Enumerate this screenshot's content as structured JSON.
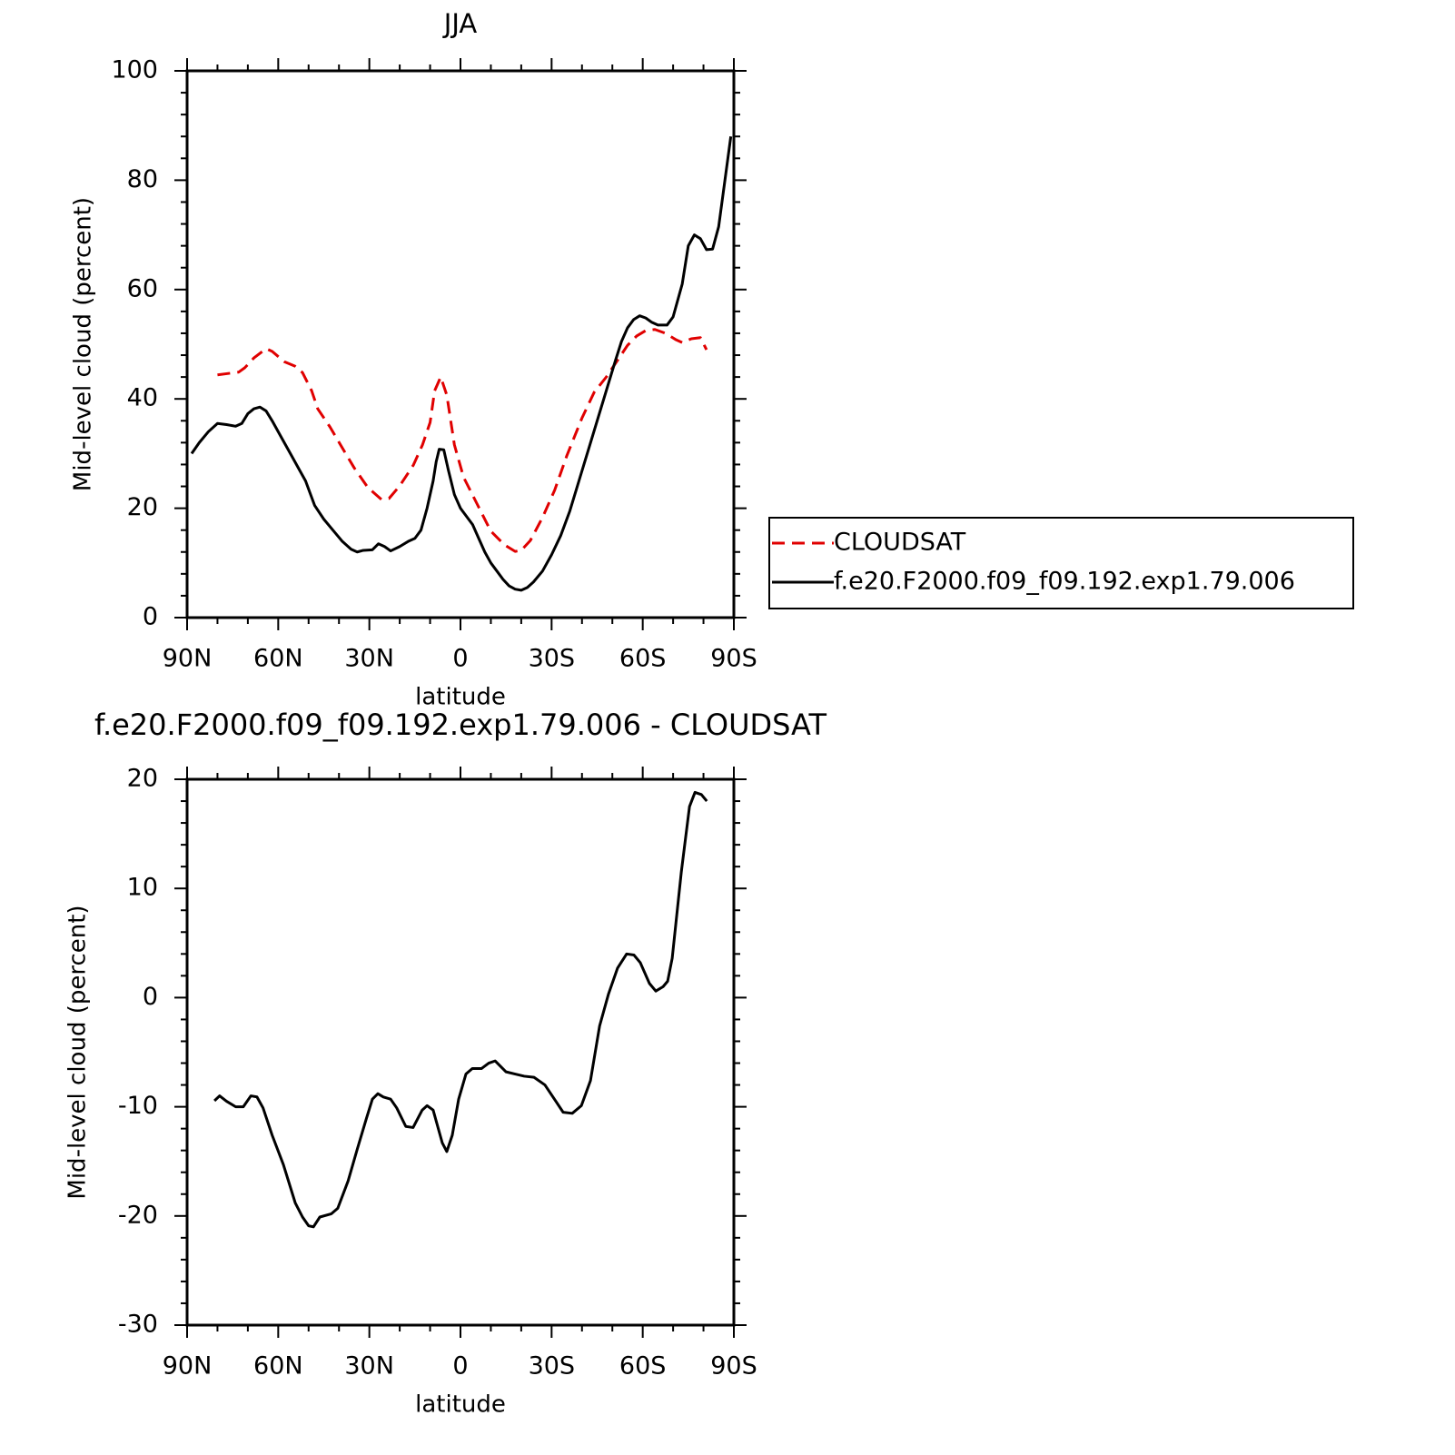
{
  "chart_data": [
    {
      "type": "line",
      "title": "JJA",
      "xlabel": "latitude",
      "ylabel": "Mid-level cloud (percent)",
      "xlim": [
        90,
        -90
      ],
      "ylim": [
        0,
        100
      ],
      "xticks": [
        {
          "value": 90,
          "label": "90N"
        },
        {
          "value": 60,
          "label": "60N"
        },
        {
          "value": 30,
          "label": "30N"
        },
        0,
        {
          "value": -30,
          "label": "30S"
        },
        {
          "value": -60,
          "label": "60S"
        },
        {
          "value": -90,
          "label": "90S"
        }
      ],
      "yticks": [
        0,
        20,
        40,
        60,
        80,
        100
      ],
      "xminorticks": [
        80,
        70,
        50,
        40,
        20,
        10,
        -10,
        -20,
        -40,
        -50,
        -70,
        -80
      ],
      "yminorticks": [
        4,
        8,
        12,
        16,
        24,
        28,
        32,
        36,
        44,
        48,
        52,
        56,
        64,
        68,
        72,
        76,
        84,
        88,
        92,
        96
      ],
      "legend": "right",
      "series": [
        {
          "name": "CLOUDSAT",
          "color": "#e00000",
          "linestyle": "dashed",
          "x": [
            80,
            73,
            71,
            68,
            64,
            62,
            58,
            54.5,
            52,
            49,
            47,
            43,
            39.5,
            35,
            30.5,
            26,
            23.5,
            20,
            15.5,
            12.5,
            10,
            8.5,
            6.5,
            4.5,
            2,
            -1,
            -4,
            -7,
            -10,
            -14.5,
            -18,
            -20,
            -23,
            -27,
            -31,
            -35,
            -40,
            -44,
            -48,
            -52,
            -55,
            -58,
            -61,
            -64,
            -67.5,
            -71,
            -73,
            -76,
            -79,
            -81
          ],
          "values": [
            44.4,
            44.9,
            45.7,
            47.5,
            49.2,
            48.7,
            46.8,
            46,
            44.8,
            41.5,
            38.2,
            34.9,
            31.6,
            27.4,
            23.8,
            21.6,
            21.8,
            24.1,
            27.9,
            31.6,
            35.7,
            41.5,
            44,
            40.7,
            31.6,
            25.7,
            22.4,
            19.1,
            15.8,
            13.3,
            12.1,
            12.3,
            14.1,
            18.3,
            23.3,
            29.6,
            36.5,
            41.2,
            44,
            47.3,
            49.8,
            51.5,
            52.5,
            52.7,
            52,
            50.8,
            50.3,
            51,
            51.2,
            49
          ]
        },
        {
          "name": "f.e20.F2000.f09_f09.192.exp1.79.006",
          "color": "#000000",
          "linestyle": "solid",
          "x": [
            88.5,
            86,
            83,
            80,
            77,
            74,
            72,
            70,
            68,
            66,
            64,
            62,
            59,
            56,
            53,
            51,
            48,
            45,
            42,
            39,
            36,
            34,
            32,
            29,
            27,
            25,
            23,
            20,
            17,
            15,
            13,
            11,
            9,
            8,
            7,
            5.5,
            4,
            2,
            0,
            -2,
            -4,
            -6,
            -8,
            -10,
            -12,
            -14,
            -16,
            -18,
            -20,
            -22,
            -24,
            -27,
            -30,
            -33,
            -36,
            -39,
            -42,
            -45,
            -48,
            -51,
            -53,
            -55,
            -57,
            -59,
            -61,
            -63,
            -65,
            -68,
            -70,
            -73,
            -75,
            -77,
            -79,
            -81,
            -83,
            -85,
            -89
          ],
          "values": [
            30,
            32,
            34,
            35.5,
            35.3,
            35,
            35.5,
            37.3,
            38.2,
            38.5,
            37.8,
            36,
            33,
            30,
            27,
            25,
            20.5,
            18,
            16,
            14,
            12.5,
            12,
            12.3,
            12.4,
            13.5,
            13,
            12.2,
            13,
            14,
            14.5,
            16,
            20,
            25,
            28.5,
            30.8,
            30.7,
            27,
            22.5,
            20,
            18.5,
            17,
            14.5,
            12,
            10,
            8.5,
            7,
            5.8,
            5.2,
            5,
            5.5,
            6.5,
            8.5,
            11.5,
            15,
            19.5,
            25,
            30.5,
            36,
            41.5,
            47,
            50.5,
            53,
            54.5,
            55.2,
            54.8,
            54,
            53.5,
            53.5,
            55,
            61,
            68,
            70,
            69.3,
            67.3,
            67.4,
            71.5,
            88
          ]
        }
      ]
    },
    {
      "type": "line",
      "title": "f.e20.F2000.f09_f09.192.exp1.79.006 - CLOUDSAT",
      "xlabel": "latitude",
      "ylabel": "Mid-level cloud (percent)",
      "xlim": [
        90,
        -90
      ],
      "ylim": [
        -30,
        20
      ],
      "xticks": [
        {
          "value": 90,
          "label": "90N"
        },
        {
          "value": 60,
          "label": "60N"
        },
        {
          "value": 30,
          "label": "30N"
        },
        0,
        {
          "value": -30,
          "label": "30S"
        },
        {
          "value": -60,
          "label": "60S"
        },
        {
          "value": -90,
          "label": "90S"
        }
      ],
      "yticks": [
        -30,
        -20,
        -10,
        0,
        10,
        20
      ],
      "xminorticks": [
        80,
        70,
        50,
        40,
        20,
        10,
        -10,
        -20,
        -40,
        -50,
        -70,
        -80
      ],
      "yminorticks": [
        18,
        16,
        14,
        12,
        8,
        6,
        4,
        2,
        -2,
        -4,
        -6,
        -8,
        -12,
        -14,
        -16,
        -18,
        -22,
        -24,
        -26,
        -28
      ],
      "color": "#000000",
      "x": [
        81,
        79.3,
        77,
        74,
        71.5,
        69,
        67,
        65,
        62,
        58.3,
        54.4,
        52,
        50,
        48.4,
        46.3,
        42.5,
        40.4,
        37,
        34,
        31,
        29,
        27.2,
        25.4,
        23,
        21,
        18,
        15.6,
        12.6,
        11,
        9,
        7.5,
        6,
        4.5,
        2.7,
        0.6,
        -1.8,
        -3.9,
        -6.9,
        -9.3,
        -11.4,
        -15,
        -18,
        -21,
        -24.2,
        -27.8,
        -31.4,
        -33.8,
        -36.8,
        -39.8,
        -42.8,
        -45.8,
        -48.7,
        -51.7,
        -54.7,
        -57.1,
        -59.2,
        -62.2,
        -64.3,
        -66.7,
        -68.2,
        -69.7,
        -72.7,
        -75.4,
        -77.2,
        -79.3,
        -81.1
      ],
      "values": [
        -9.45,
        -9,
        -9.5,
        -10,
        -10,
        -9,
        -9.1,
        -10.1,
        -12.6,
        -15.3,
        -18.8,
        -20.1,
        -20.9,
        -21,
        -20.1,
        -19.8,
        -19.3,
        -16.8,
        -13.9,
        -11.1,
        -9.3,
        -8.8,
        -9.1,
        -9.3,
        -10.1,
        -11.8,
        -11.9,
        -10.3,
        -9.9,
        -10.3,
        -11.8,
        -13.3,
        -14.1,
        -12.6,
        -9.3,
        -7,
        -6.5,
        -6.5,
        -6,
        -5.8,
        -6.8,
        -7,
        -7.2,
        -7.3,
        -8,
        -9.5,
        -10.5,
        -10.6,
        -9.9,
        -7.6,
        -2.6,
        0.3,
        2.7,
        4,
        3.9,
        3.2,
        1.3,
        0.6,
        1,
        1.5,
        3.6,
        11.5,
        17.5,
        18.8,
        18.6,
        18
      ]
    }
  ]
}
